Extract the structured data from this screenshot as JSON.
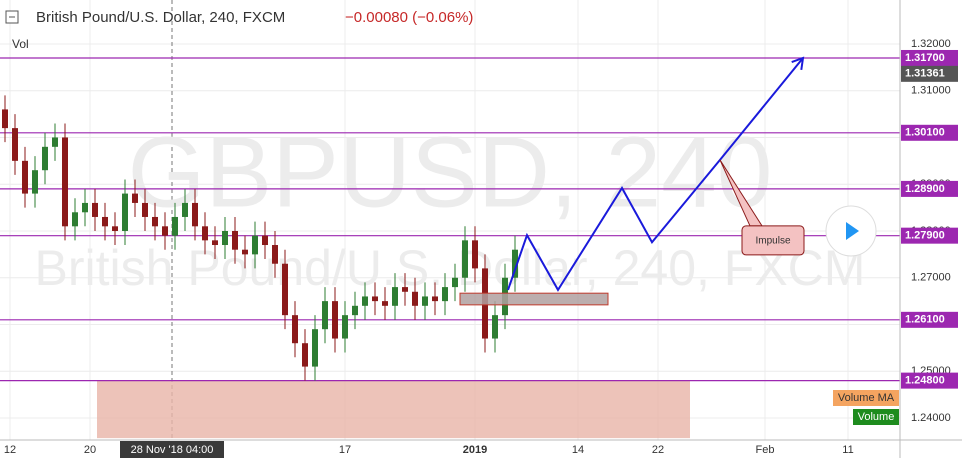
{
  "header": {
    "symbol_title": "British Pound/U.S. Dollar, 240, FXCM",
    "change": "−0.00080 (−0.06%)",
    "volume_label": "Vol"
  },
  "watermark": "GBPUSD, 240",
  "chart_data": {
    "type": "candlestick",
    "x": [
      -0.5,
      0.5,
      1.5,
      2.5,
      3.5,
      4.5,
      5.5,
      6.5,
      7.5,
      8.5,
      9.5,
      10.5,
      11.5,
      12.5,
      13.5,
      14.5,
      15.5,
      16.5,
      17.5,
      18.5,
      19.5,
      20.5,
      21.5,
      22.5,
      23.5,
      24.5,
      25.5,
      26.5,
      27.5,
      28.5,
      29.5,
      30.5,
      31.5,
      32.5,
      33.5,
      34.5,
      35.5,
      36.5,
      37.5,
      38.5,
      39.5,
      40.5,
      41.5,
      42.5,
      43.5,
      44.5,
      45.5,
      46.5,
      47.5,
      48.5,
      49.5,
      50.5
    ],
    "open": [
      1.306,
      1.302,
      1.295,
      1.288,
      1.293,
      1.298,
      1.3,
      1.281,
      1.284,
      1.286,
      1.283,
      1.281,
      1.28,
      1.288,
      1.286,
      1.283,
      1.281,
      1.279,
      1.283,
      1.286,
      1.281,
      1.278,
      1.277,
      1.28,
      1.276,
      1.275,
      1.279,
      1.277,
      1.273,
      1.262,
      1.256,
      1.251,
      1.259,
      1.265,
      1.257,
      1.262,
      1.264,
      1.266,
      1.265,
      1.264,
      1.268,
      1.267,
      1.264,
      1.266,
      1.265,
      1.268,
      1.27,
      1.278,
      1.272,
      1.257,
      1.262,
      1.27
    ],
    "high": [
      1.309,
      1.305,
      1.298,
      1.296,
      1.301,
      1.303,
      1.303,
      1.287,
      1.289,
      1.289,
      1.286,
      1.284,
      1.291,
      1.291,
      1.289,
      1.286,
      1.284,
      1.286,
      1.289,
      1.289,
      1.284,
      1.281,
      1.283,
      1.283,
      1.279,
      1.282,
      1.282,
      1.28,
      1.276,
      1.265,
      1.259,
      1.262,
      1.268,
      1.268,
      1.265,
      1.267,
      1.269,
      1.269,
      1.268,
      1.271,
      1.271,
      1.27,
      1.269,
      1.269,
      1.271,
      1.273,
      1.281,
      1.281,
      1.275,
      1.265,
      1.273,
      1.279
    ],
    "low": [
      1.299,
      1.292,
      1.285,
      1.285,
      1.29,
      1.295,
      1.278,
      1.278,
      1.281,
      1.28,
      1.278,
      1.277,
      1.277,
      1.283,
      1.28,
      1.278,
      1.276,
      1.276,
      1.28,
      1.278,
      1.275,
      1.274,
      1.274,
      1.273,
      1.272,
      1.272,
      1.274,
      1.27,
      1.259,
      1.253,
      1.248,
      1.248,
      1.256,
      1.254,
      1.254,
      1.259,
      1.261,
      1.262,
      1.261,
      1.261,
      1.264,
      1.261,
      1.261,
      1.262,
      1.262,
      1.265,
      1.267,
      1.269,
      1.254,
      1.254,
      1.259,
      1.267
    ],
    "close": [
      1.302,
      1.295,
      1.288,
      1.293,
      1.298,
      1.3,
      1.281,
      1.284,
      1.286,
      1.283,
      1.281,
      1.28,
      1.288,
      1.286,
      1.283,
      1.281,
      1.279,
      1.283,
      1.286,
      1.281,
      1.278,
      1.277,
      1.28,
      1.276,
      1.275,
      1.279,
      1.277,
      1.273,
      1.262,
      1.256,
      1.251,
      1.259,
      1.265,
      1.257,
      1.262,
      1.264,
      1.266,
      1.265,
      1.264,
      1.268,
      1.267,
      1.264,
      1.266,
      1.265,
      1.268,
      1.27,
      1.278,
      1.272,
      1.257,
      1.262,
      1.27,
      1.276
    ],
    "up_color": "#2e7d32",
    "down_color": "#8b1a1a",
    "xlim": [
      -1,
      89
    ],
    "ylim": [
      1.2353,
      1.3294
    ],
    "xticks": [
      {
        "value": 0,
        "label": "12"
      },
      {
        "value": 8,
        "label": "20"
      },
      {
        "value": 33.5,
        "label": "17"
      },
      {
        "value": 46.5,
        "label": "2019"
      },
      {
        "value": 56.8,
        "label": "14"
      },
      {
        "value": 64.8,
        "label": "22"
      },
      {
        "value": 75.5,
        "label": "Feb"
      },
      {
        "value": 83.8,
        "label": "11"
      }
    ],
    "yticks": [
      {
        "value": 1.24,
        "label": "1.24000"
      },
      {
        "value": 1.25,
        "label": "1.25000"
      },
      {
        "value": 1.26,
        "label": "1.26000"
      },
      {
        "value": 1.27,
        "label": "1.27000"
      },
      {
        "value": 1.28,
        "label": "1.28000"
      },
      {
        "value": 1.29,
        "label": "1.29000"
      },
      {
        "value": 1.3,
        "label": "1.30000"
      },
      {
        "value": 1.31,
        "label": "1.31000"
      },
      {
        "value": 1.32,
        "label": "1.32000"
      }
    ],
    "grid": true,
    "crosshair": {
      "value": 16.2,
      "label": "28 Nov '18  04:00"
    },
    "level_color": "#9c27b0",
    "levels": [
      {
        "value": 1.317,
        "label": "1.31700"
      },
      {
        "value": 1.301,
        "label": "1.30100"
      },
      {
        "value": 1.289,
        "label": "1.28900"
      },
      {
        "value": 1.279,
        "label": "1.27900"
      },
      {
        "value": 1.261,
        "label": "1.26100"
      },
      {
        "value": 1.248,
        "label": "1.24800"
      }
    ],
    "last_price": {
      "value": 1.31361,
      "label": "1.31361"
    },
    "zone": {
      "x": [
        8.7,
        68
      ],
      "y": [
        1.248,
        1.2357
      ],
      "color": "#e8b4a8"
    },
    "box": {
      "x": [
        45,
        59.8
      ],
      "y": [
        1.2667,
        1.2642
      ],
      "color": "#b0a0a0"
    },
    "path": {
      "x": [
        49.8,
        51.7,
        54.8,
        61.2,
        64.2,
        71,
        79.3
      ],
      "y": [
        1.2674,
        1.2791,
        1.2674,
        1.2892,
        1.2776,
        1.2952,
        1.317
      ],
      "color": "#1a1adb"
    },
    "callout": {
      "text": "Impulse",
      "x": 71,
      "y": 1.2952
    },
    "volume_legend": [
      {
        "name": "Volume MA",
        "color": "#f4a460"
      },
      {
        "name": "Volume",
        "color": "#1e8c1e"
      }
    ]
  }
}
